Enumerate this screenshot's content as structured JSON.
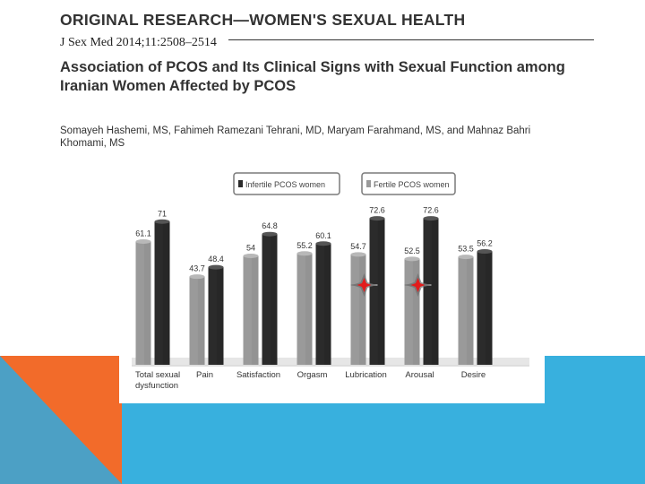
{
  "slide": {
    "header": "ORIGINAL RESEARCH—WOMEN'S SEXUAL HEALTH",
    "journal": "J Sex Med 2014;11:2508–2514",
    "title": "Association of PCOS and Its Clinical Signs with Sexual Function among Iranian Women Affected by PCOS",
    "authors": "Somayeh Hashemi, MS, Fahimeh Ramezani Tehrani, MD, Maryam Farahmand, MS, and Mahnaz Bahri Khomami, MS",
    "colors": {
      "accent_orange": "#f26b2a",
      "accent_blue": "#38b0de"
    }
  },
  "chart_data": {
    "type": "bar",
    "title": "",
    "xlabel": "",
    "ylabel": "",
    "ylim": [
      0,
      80
    ],
    "grid": false,
    "legend_position": "top",
    "categories": [
      "Total sexual dysfunction",
      "Pain",
      "Satisfaction",
      "Orgasm",
      "Lubrication",
      "Arousal",
      "Desire"
    ],
    "series": [
      {
        "name": "Fertile PCOS women",
        "color": "#9a9a9a",
        "values": [
          61.1,
          43.7,
          54,
          55.2,
          54.7,
          52.5,
          53.5
        ]
      },
      {
        "name": "Infertile PCOS women",
        "color": "#2b2b2b",
        "values": [
          71,
          48.4,
          64.8,
          60.1,
          72.6,
          72.6,
          56.2
        ]
      }
    ],
    "annotations": [
      {
        "category": "Lubrication",
        "marker": "red-star"
      },
      {
        "category": "Arousal",
        "marker": "red-star"
      }
    ]
  }
}
